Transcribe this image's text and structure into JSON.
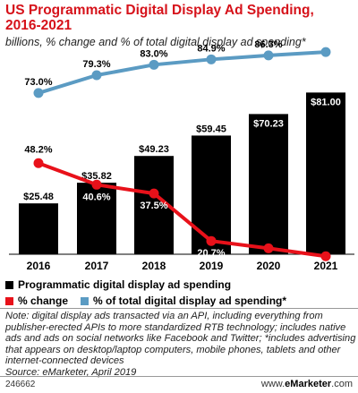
{
  "chart_data": {
    "type": "bar",
    "title": "US Programmatic Digital Display Ad Spending, 2016-2021",
    "subtitle": "billions, % change and % of total digital display ad spending*",
    "categories": [
      "2016",
      "2017",
      "2018",
      "2019",
      "2020",
      "2021"
    ],
    "series": [
      {
        "name": "Programmatic digital display ad spending",
        "kind": "bar",
        "color": "#000000",
        "values": [
          25.48,
          35.82,
          49.23,
          59.45,
          70.23,
          81.0
        ],
        "labels": [
          "$25.48",
          "$35.82",
          "$49.23",
          "$59.45",
          "$70.23",
          "$81.00"
        ]
      },
      {
        "name": "% change",
        "kind": "line",
        "color": "#e8111a",
        "values": [
          48.2,
          40.6,
          37.5,
          20.7,
          18.1,
          15.3
        ],
        "labels": [
          "48.2%",
          "40.6%",
          "37.5%",
          "20.7%",
          "18.1%",
          "15.3%"
        ]
      },
      {
        "name": "% of total digital display ad spending*",
        "kind": "line",
        "color": "#5b9bc3",
        "values": [
          73.0,
          79.3,
          83.0,
          84.9,
          86.3,
          87.5
        ],
        "labels": [
          "73.0%",
          "79.3%",
          "83.0%",
          "84.9%",
          "86.3%",
          "87.5%"
        ]
      }
    ],
    "legend_position": "bottom",
    "grid": false
  },
  "note": "Note: digital display ads transacted via an API, including everything from publisher-erected APIs to more standardized RTB technology; includes native ads and ads on social networks like Facebook and Twitter; *includes advertising that appears on desktop/laptop computers, mobile phones, tablets and other internet-connected devices",
  "source": "Source: eMarketer, April 2019",
  "footer": {
    "id": "246662",
    "brand_prefix": "www.",
    "brand_name": "eMarketer",
    "brand_suffix": ".com"
  }
}
